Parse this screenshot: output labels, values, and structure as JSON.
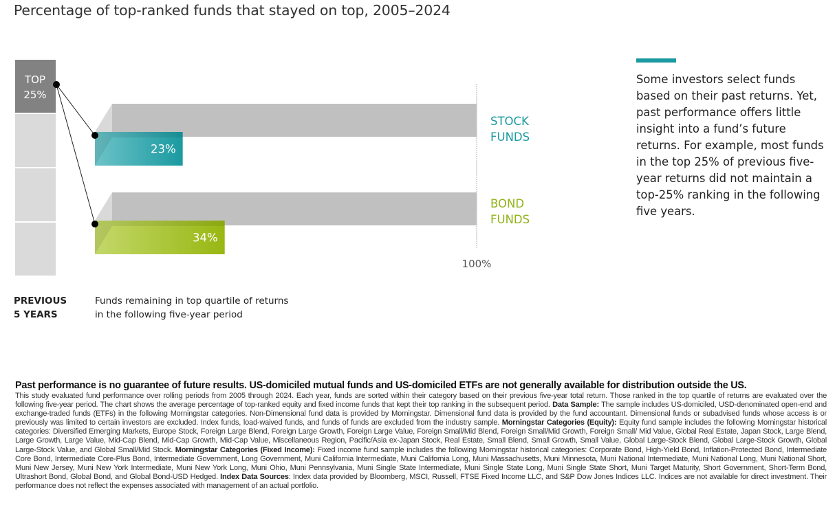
{
  "title": "Percentage of top-ranked funds that stayed on top, 2005–2024",
  "chart_data": {
    "type": "bar",
    "orientation": "horizontal",
    "title": "Percentage of top-ranked funds that stayed on top, 2005–2024",
    "start_group": {
      "line1": "TOP",
      "line2": "25%",
      "quartiles": 4
    },
    "categories": [
      "STOCK FUNDS",
      "BOND FUNDS"
    ],
    "category_labels": [
      {
        "line1": "STOCK",
        "line2": "FUNDS",
        "color": "#1a9aa0"
      },
      {
        "line1": "BOND",
        "line2": "FUNDS",
        "color": "#8fb317"
      }
    ],
    "values": [
      23,
      34
    ],
    "value_labels": [
      "23%",
      "34%"
    ],
    "xlim": [
      0,
      100
    ],
    "reference_label": "100%",
    "series_colors": {
      "stock": {
        "light": "#6cc3c8",
        "dark": "#1a9aa0"
      },
      "bond": {
        "light": "#c3d86a",
        "dark": "#98b712"
      }
    },
    "xlabel": "Funds remaining in top quartile of returns in the following five-year period",
    "ylabel": "PREVIOUS 5 YEARS"
  },
  "side_note": {
    "accent_color": "#1a9aa0",
    "text": "Some investors select funds based on their past returns. Yet, past performance offers little insight into a fund’s future returns. For example, most funds in the top 25% of previous five-year returns did not maintain a top-25% ranking in the following five years."
  },
  "axis_labels": {
    "previous_line1": "PREVIOUS",
    "previous_line2": "5 YEARS",
    "remaining_line1": "Funds remaining in top quartile of returns",
    "remaining_line2": "in the following five-year period"
  },
  "disclaimer": {
    "headline": "Past performance is no guarantee of future results. US-domiciled mutual funds and US-domiciled ETFs are not generally available for distribution outside the US.",
    "p1": "This study evaluated fund performance over rolling periods from 2005 through 2024. Each year, funds are sorted within their category based on their previous five-year total return. Those ranked in the top quartile of returns are evaluated over the following five-year period. The chart shows the average percentage of top-ranked equity and fixed income funds that kept their top ranking in the subsequent period.",
    "data_sample_label": "Data Sample:",
    "data_sample": "The sample includes US-domiciled, USD-denominated open-end and exchange-traded funds (ETFs) in the following Morningstar categories. Non-Dimensional fund data is provided by Morningstar. Dimensional fund data is provided by the fund accountant. Dimensional funds or subadvised funds whose access is or previously was limited to certain investors are excluded. Index funds, load-waived funds, and funds of funds are excluded from the industry sample.",
    "equity_label": "Morningstar Categories (Equity):",
    "equity": "Equity fund sample includes the following Morningstar historical categories: Diversified Emerging Markets, Europe Stock, Foreign Large Blend, Foreign Large Growth, Foreign Large Value, Foreign Small/Mid Blend, Foreign Small/Mid Growth, Foreign Small/ Mid Value, Global Real Estate, Japan Stock, Large Blend, Large Growth, Large Value, Mid-Cap Blend, Mid-Cap Growth, Mid-Cap Value, Miscellaneous Region, Pacific/Asia ex-Japan Stock, Real Estate, Small Blend, Small Growth, Small Value, Global Large-Stock Blend, Global Large-Stock Growth, Global Large-Stock Value, and Global Small/Mid Stock.",
    "fixed_label": "Morningstar Categories (Fixed Income):",
    "fixed": "Fixed income fund sample includes the following Morningstar historical categories: Corporate Bond, High-Yield Bond, Inflation-Protected Bond, Intermediate Core Bond, Intermediate Core-Plus Bond, Intermediate Government, Long Government, Muni California Intermediate, Muni California Long, Muni Massachusetts, Muni Minnesota, Muni National Intermediate, Muni National Long, Muni National Short, Muni New Jersey, Muni New York Intermediate, Muni New York Long, Muni Ohio, Muni Pennsylvania, Muni Single State Intermediate, Muni Single State Long, Muni Single State Short, Muni Target Maturity, Short Government, Short-Term Bond, Ultrashort Bond, Global Bond, and Global Bond-USD Hedged.",
    "index_label": "Index Data Sources",
    "index": ": Index data provided by Bloomberg, MSCI, Russell, FTSE Fixed Income LLC, and S&P Dow Jones Indices LLC. Indices are not available for direct investment. Their performance does not reflect the expenses associated with management of an actual portfolio."
  }
}
